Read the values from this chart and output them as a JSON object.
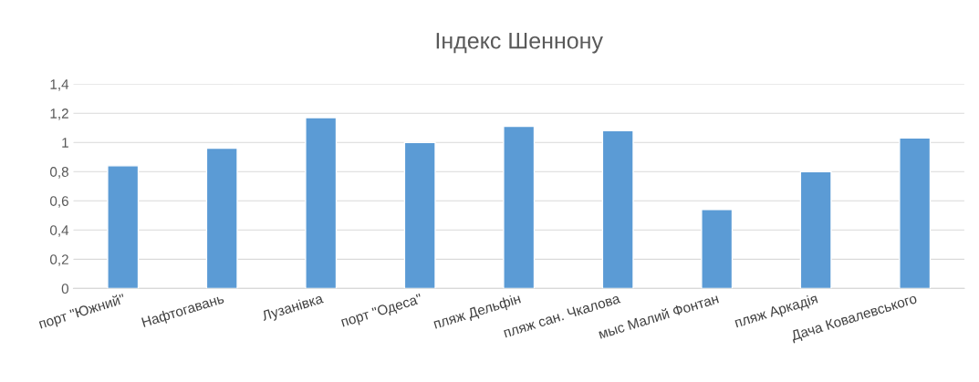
{
  "chart_data": {
    "type": "bar",
    "title": "Індекс Шеннону",
    "categories": [
      "порт \"Южний\"",
      "Нафтогавань",
      "Лузанівка",
      "порт \"Одеса\"",
      "пляж Дельфін",
      "пляж сан. Чкалова",
      "мыс Малий Фонтан",
      "пляж Аркадія",
      "Дача Ковалевського"
    ],
    "values": [
      0.84,
      0.96,
      1.17,
      1.0,
      1.11,
      1.08,
      0.54,
      0.8,
      1.03
    ],
    "color": "#5b9bd5",
    "ylim": [
      0,
      1.4
    ],
    "yticks": [
      0,
      {
        "value": 0.2,
        "label": "0,2"
      },
      {
        "value": 0.4,
        "label": "0,4"
      },
      {
        "value": 0.6,
        "label": "0,6"
      },
      {
        "value": 0.8,
        "label": "0,8"
      },
      1,
      {
        "value": 1.2,
        "label": "1,2"
      },
      {
        "value": 1.4,
        "label": "1,4"
      }
    ],
    "grid": "y",
    "legend": false
  }
}
